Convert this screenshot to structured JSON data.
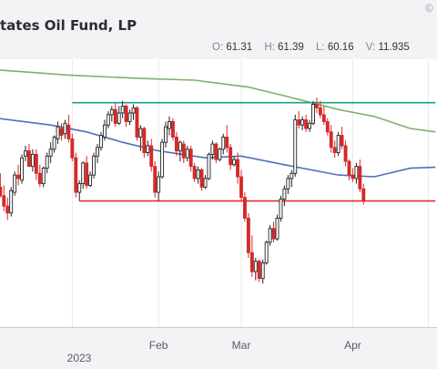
{
  "header": {
    "title": "tates Oil Fund, LP",
    "copyright_symbol": "©",
    "ohlc": {
      "o_label": "O:",
      "o_value": "61.31",
      "h_label": "H:",
      "h_value": "61.39",
      "l_label": "L:",
      "l_value": "60.16",
      "v_label": "V:",
      "v_value": "11.935"
    }
  },
  "colors": {
    "up": "#222222",
    "down": "#d42a2a",
    "ma_short": "#4f72b8",
    "ma_long": "#7fb069",
    "resistance": "#16a38a",
    "support": "#e03030",
    "grid": "#e8e9ee"
  },
  "chart_data": {
    "type": "candlestick",
    "ylim": [
      55.6,
      70.5
    ],
    "time_axis": {
      "ticks": [
        {
          "label": "",
          "index": 21
        },
        {
          "label": "Feb",
          "index": 45
        },
        {
          "label": "Mar",
          "index": 68
        },
        {
          "label": "Apr",
          "index": 99
        },
        {
          "label": "",
          "index": 120
        }
      ],
      "year_label": "2023"
    },
    "overlays": {
      "moving_average_short": {
        "points": [
          [
            0,
            67.4
          ],
          [
            15,
            67.0
          ],
          [
            25,
            66.6
          ],
          [
            35,
            66.0
          ],
          [
            45,
            65.5
          ],
          [
            58,
            65.1
          ],
          [
            68,
            65.2
          ],
          [
            80,
            64.7
          ],
          [
            95,
            64.1
          ],
          [
            105,
            64.0
          ],
          [
            115,
            64.5
          ],
          [
            122,
            64.55
          ]
        ]
      },
      "moving_average_long": {
        "points": [
          [
            0,
            70.2
          ],
          [
            20,
            69.9
          ],
          [
            40,
            69.7
          ],
          [
            55,
            69.6
          ],
          [
            70,
            69.2
          ],
          [
            80,
            68.7
          ],
          [
            95,
            67.9
          ],
          [
            105,
            67.5
          ],
          [
            115,
            66.8
          ],
          [
            122,
            66.6
          ]
        ]
      },
      "horizontal_levels": [
        {
          "kind": "resistance",
          "value": 68.3,
          "from_index": 21,
          "to_index": 122
        },
        {
          "kind": "support",
          "value": 62.6,
          "from_index": 23,
          "to_index": 122
        }
      ]
    },
    "candles": [
      [
        62.8,
        63.7,
        62.0,
        63.4
      ],
      [
        63.4,
        64.2,
        62.8,
        62.9
      ],
      [
        62.9,
        63.5,
        62.0,
        62.3
      ],
      [
        62.3,
        62.8,
        61.5,
        61.9
      ],
      [
        61.9,
        63.4,
        61.7,
        63.2
      ],
      [
        63.1,
        64.3,
        62.9,
        64.1
      ],
      [
        64.1,
        64.7,
        63.5,
        63.9
      ],
      [
        63.8,
        65.3,
        63.6,
        65.1
      ],
      [
        65.2,
        65.8,
        64.9,
        65.5
      ],
      [
        65.5,
        65.9,
        64.7,
        64.6
      ],
      [
        64.6,
        65.6,
        64.3,
        65.3
      ],
      [
        65.3,
        65.6,
        63.8,
        64.2
      ],
      [
        64.2,
        64.7,
        63.4,
        63.6
      ],
      [
        63.6,
        64.6,
        63.4,
        64.5
      ],
      [
        64.5,
        65.4,
        64.2,
        65.2
      ],
      [
        65.2,
        66.0,
        64.8,
        65.6
      ],
      [
        65.6,
        66.4,
        65.4,
        66.3
      ],
      [
        66.2,
        67.2,
        65.9,
        66.9
      ],
      [
        66.8,
        67.1,
        66.1,
        66.4
      ],
      [
        66.5,
        67.3,
        66.2,
        67.1
      ],
      [
        67.0,
        67.6,
        66.0,
        66.2
      ],
      [
        66.2,
        66.5,
        64.9,
        65.1
      ],
      [
        65.1,
        65.4,
        62.8,
        63.1
      ],
      [
        63.1,
        63.8,
        62.6,
        63.6
      ],
      [
        63.6,
        64.9,
        63.3,
        64.8
      ],
      [
        64.8,
        65.2,
        63.3,
        63.5
      ],
      [
        63.5,
        64.3,
        63.4,
        64.1
      ],
      [
        64.1,
        65.4,
        63.9,
        65.2
      ],
      [
        65.2,
        65.9,
        64.8,
        65.7
      ],
      [
        65.7,
        66.6,
        65.5,
        66.4
      ],
      [
        66.3,
        67.3,
        66.1,
        67.0
      ],
      [
        67.0,
        67.8,
        66.8,
        67.6
      ],
      [
        67.6,
        68.1,
        67.2,
        67.9
      ],
      [
        67.9,
        68.3,
        66.9,
        67.1
      ],
      [
        67.1,
        68.1,
        67.0,
        67.7
      ],
      [
        67.7,
        68.4,
        67.4,
        68.1
      ],
      [
        68.1,
        68.2,
        66.9,
        67.2
      ],
      [
        67.2,
        67.9,
        67.0,
        67.7
      ],
      [
        67.7,
        68.2,
        67.3,
        68.0
      ],
      [
        68.0,
        68.1,
        66.1,
        66.3
      ],
      [
        66.3,
        67.0,
        65.5,
        66.8
      ],
      [
        66.8,
        66.9,
        65.1,
        65.4
      ],
      [
        65.4,
        66.1,
        65.2,
        65.8
      ],
      [
        65.8,
        66.2,
        64.3,
        64.6
      ],
      [
        64.6,
        64.9,
        62.8,
        63.1
      ],
      [
        63.1,
        64.3,
        62.6,
        64.0
      ],
      [
        64.0,
        66.2,
        63.9,
        66.0
      ],
      [
        66.0,
        67.2,
        65.7,
        66.9
      ],
      [
        66.8,
        67.5,
        66.4,
        67.2
      ],
      [
        67.2,
        67.4,
        66.1,
        66.3
      ],
      [
        66.3,
        66.6,
        65.2,
        65.5
      ],
      [
        65.5,
        66.1,
        64.9,
        66.0
      ],
      [
        65.9,
        66.1,
        64.8,
        65.1
      ],
      [
        65.1,
        65.8,
        64.9,
        65.6
      ],
      [
        65.6,
        65.8,
        64.3,
        64.6
      ],
      [
        64.6,
        64.8,
        63.7,
        63.9
      ],
      [
        63.9,
        64.6,
        63.6,
        64.4
      ],
      [
        64.4,
        64.5,
        63.2,
        63.4
      ],
      [
        63.4,
        64.1,
        63.3,
        63.9
      ],
      [
        63.9,
        65.4,
        63.8,
        65.3
      ],
      [
        65.3,
        66.1,
        65.0,
        65.9
      ],
      [
        65.9,
        66.0,
        64.8,
        65.0
      ],
      [
        65.0,
        65.7,
        64.9,
        65.6
      ],
      [
        65.6,
        66.5,
        65.3,
        66.3
      ],
      [
        66.3,
        67.0,
        65.4,
        65.7
      ],
      [
        65.7,
        65.9,
        64.4,
        64.7
      ],
      [
        64.7,
        65.2,
        64.6,
        65.0
      ],
      [
        65.0,
        65.4,
        63.6,
        64.0
      ],
      [
        64.0,
        64.4,
        62.6,
        62.8
      ],
      [
        62.8,
        63.1,
        61.4,
        61.6
      ],
      [
        61.6,
        61.9,
        59.3,
        59.6
      ],
      [
        59.6,
        60.6,
        58.2,
        58.5
      ],
      [
        58.5,
        59.3,
        58.0,
        59.1
      ],
      [
        59.1,
        59.2,
        57.9,
        58.1
      ],
      [
        58.1,
        59.2,
        57.8,
        59.0
      ],
      [
        59.0,
        60.3,
        58.9,
        60.2
      ],
      [
        60.2,
        61.2,
        60.0,
        61.0
      ],
      [
        61.0,
        61.4,
        60.2,
        60.4
      ],
      [
        60.4,
        61.8,
        60.3,
        61.6
      ],
      [
        61.6,
        62.9,
        61.4,
        62.7
      ],
      [
        62.7,
        63.5,
        62.3,
        63.3
      ],
      [
        63.3,
        64.1,
        63.0,
        63.9
      ],
      [
        63.9,
        64.4,
        63.4,
        64.2
      ],
      [
        64.2,
        67.6,
        64.0,
        67.3
      ],
      [
        67.3,
        67.8,
        66.8,
        67.0
      ],
      [
        67.0,
        67.5,
        66.7,
        67.3
      ],
      [
        67.3,
        67.6,
        66.6,
        66.8
      ],
      [
        66.8,
        67.3,
        66.6,
        67.1
      ],
      [
        67.1,
        68.4,
        67.0,
        68.2
      ],
      [
        68.2,
        68.6,
        67.7,
        68.0
      ],
      [
        68.0,
        68.4,
        67.4,
        67.6
      ],
      [
        67.6,
        68.1,
        67.0,
        67.2
      ],
      [
        67.2,
        67.4,
        66.4,
        66.6
      ],
      [
        66.6,
        67.0,
        65.4,
        65.7
      ],
      [
        65.7,
        66.1,
        65.1,
        65.4
      ],
      [
        65.4,
        66.6,
        65.2,
        66.4
      ],
      [
        66.4,
        66.9,
        65.6,
        65.8
      ],
      [
        65.8,
        66.1,
        64.6,
        64.9
      ],
      [
        64.9,
        65.0,
        63.8,
        64.1
      ],
      [
        64.1,
        64.5,
        63.7,
        63.9
      ],
      [
        63.9,
        64.8,
        63.6,
        64.6
      ],
      [
        64.6,
        65.0,
        63.1,
        63.3
      ],
      [
        63.3,
        63.6,
        62.4,
        62.6
      ]
    ]
  }
}
